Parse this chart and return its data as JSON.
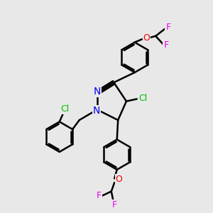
{
  "background_color": "#e8e8e8",
  "bond_color": "#000000",
  "bond_width": 1.8,
  "atom_colors": {
    "N": "#0000ee",
    "Cl": "#00bb00",
    "O": "#ee0000",
    "F": "#ee00ee",
    "C": "#000000"
  },
  "font_size": 9,
  "figsize": [
    3.0,
    3.0
  ],
  "dpi": 100
}
